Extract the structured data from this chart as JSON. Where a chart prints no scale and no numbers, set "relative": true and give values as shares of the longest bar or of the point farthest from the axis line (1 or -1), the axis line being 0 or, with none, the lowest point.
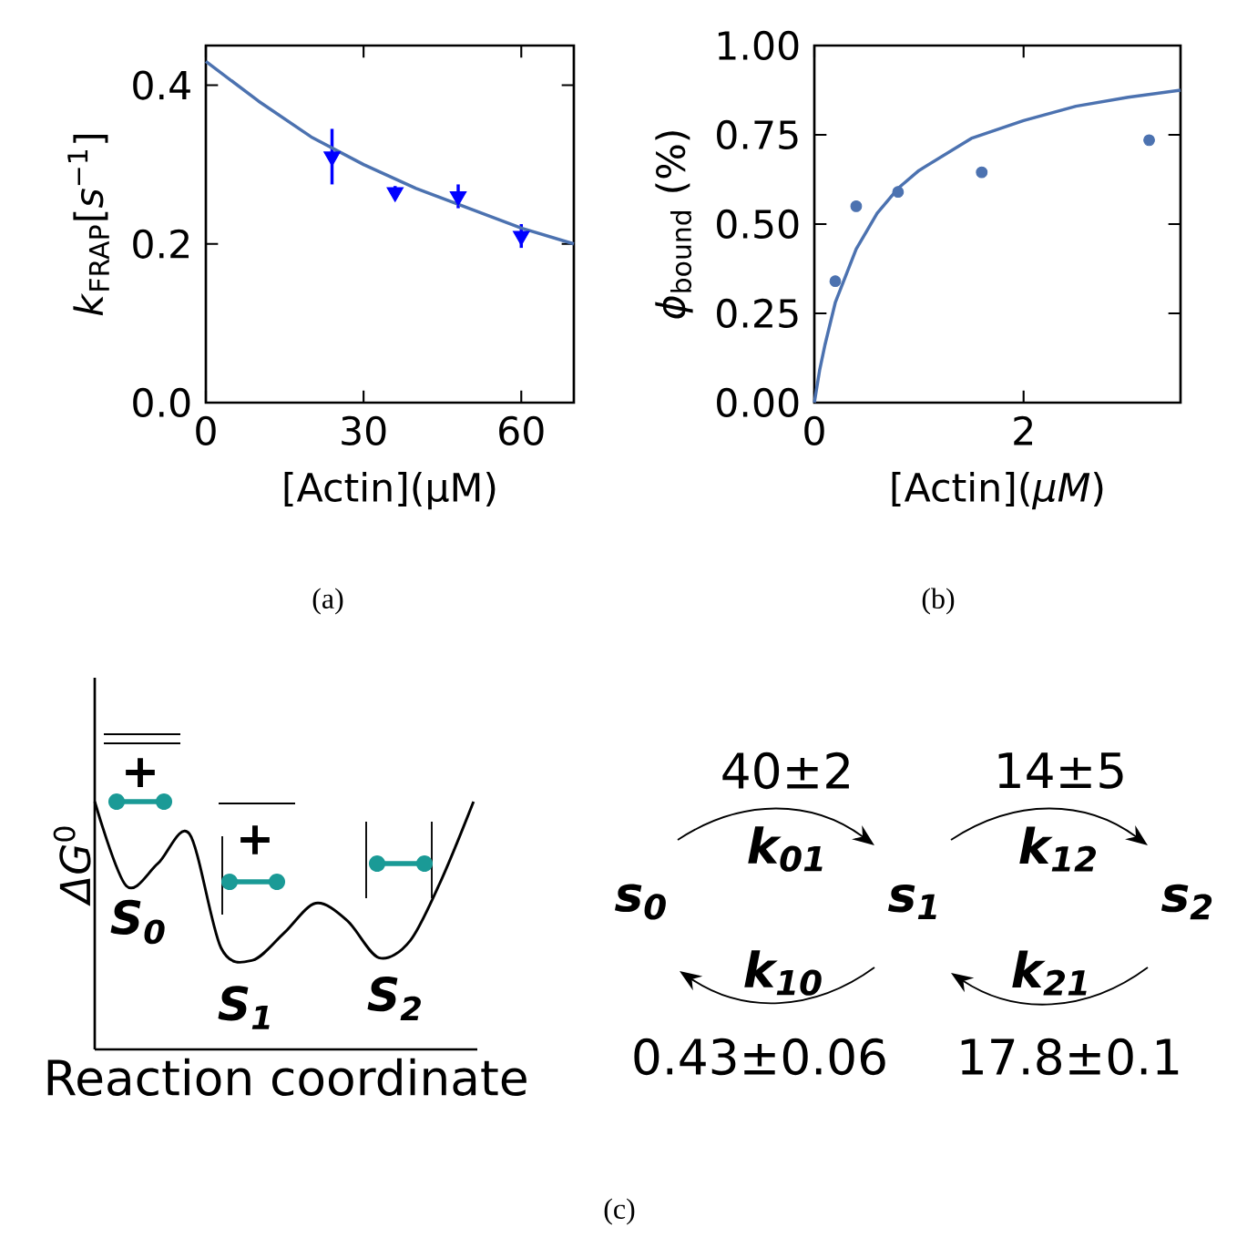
{
  "chart_data": [
    {
      "type": "scatter",
      "xlabel": "[Actin](μM)",
      "ylabel": "*k*$_{FRAP}$[*s*$^{−1}$]",
      "xlim": [
        0,
        70
      ],
      "ylim": [
        0,
        0.45
      ],
      "xticks": [
        0,
        30,
        60
      ],
      "yticks": [
        {
          "value": 0,
          "label": "0.0"
        },
        {
          "value": 0.2,
          "label": "0.2"
        },
        {
          "value": 0.4,
          "label": "0.4"
        }
      ],
      "annotations": [
        "(a)"
      ],
      "series": [
        {
          "type": "scatter",
          "color": "#0000ff",
          "marker": "triangle",
          "x": [
            24,
            36,
            48,
            60
          ],
          "values": [
            0.31,
            0.265,
            0.26,
            0.21
          ],
          "errors": [
            0.035,
            0.008,
            0.015,
            0.015
          ]
        },
        {
          "type": "line",
          "color": "#4c72b0",
          "marker": "none",
          "x": [
            0,
            10,
            20,
            30,
            40,
            50,
            60,
            70
          ],
          "values": [
            0.43,
            0.38,
            0.335,
            0.3,
            0.27,
            0.245,
            0.22,
            0.2
          ]
        }
      ]
    },
    {
      "type": "scatter",
      "xlabel": "[Actin](*μM*)",
      "ylabel": "*ϕ*$_{bound}$ (%)",
      "xlim": [
        0,
        3.5
      ],
      "ylim": [
        0,
        1
      ],
      "xticks": [
        0,
        2
      ],
      "yticks": [
        {
          "value": 0,
          "label": "0.00"
        },
        {
          "value": 0.25,
          "label": "0.25"
        },
        {
          "value": 0.5,
          "label": "0.50"
        },
        {
          "value": 0.75,
          "label": "0.75"
        },
        {
          "value": 1,
          "label": "1.00"
        }
      ],
      "annotations": [
        "(b)"
      ],
      "series": [
        {
          "type": "scatter",
          "color": "#4c72b0",
          "marker": "circle",
          "x": [
            0.2,
            0.4,
            0.8,
            1.6,
            3.2
          ],
          "values": [
            0.34,
            0.55,
            0.59,
            0.645,
            0.735
          ]
        },
        {
          "type": "line",
          "color": "#4c72b0",
          "marker": "none",
          "x": [
            0,
            0.05,
            0.1,
            0.2,
            0.4,
            0.6,
            0.8,
            1.0,
            1.5,
            2,
            2.5,
            3,
            3.5
          ],
          "values": [
            0,
            0.09,
            0.16,
            0.28,
            0.43,
            0.53,
            0.6,
            0.65,
            0.74,
            0.79,
            0.83,
            0.855,
            0.875
          ]
        }
      ]
    },
    {
      "type": "line",
      "relative": true,
      "xlabel": "Reaction coordinate",
      "ylabel": "*ΔG*$^{0}$",
      "color": "#000000",
      "categories": [
        null,
        null,
        null,
        null,
        null,
        null,
        null,
        null,
        null,
        null,
        null,
        null,
        null
      ],
      "values": [
        1,
        0.66,
        0.75,
        0.87,
        0.41,
        0.36,
        0.47,
        0.59,
        0.52,
        0.37,
        0.44,
        0.69,
        1
      ],
      "annotations": [
        "*S*$_{0}$",
        "*S*$_{1}$",
        "*S*$_{2}$",
        "+",
        "+",
        "(c)"
      ]
    },
    {
      "type": "other",
      "annotations": [
        "*s*$_{0}$",
        "*s*$_{1}$",
        "*s*$_{2}$",
        "*k*$_{01}$",
        "*k*$_{12}$",
        "*k*$_{10}$",
        "*k*$_{21}$",
        "40±2",
        "14±5",
        "0.43±0.06",
        "17.8±0.1"
      ]
    }
  ]
}
